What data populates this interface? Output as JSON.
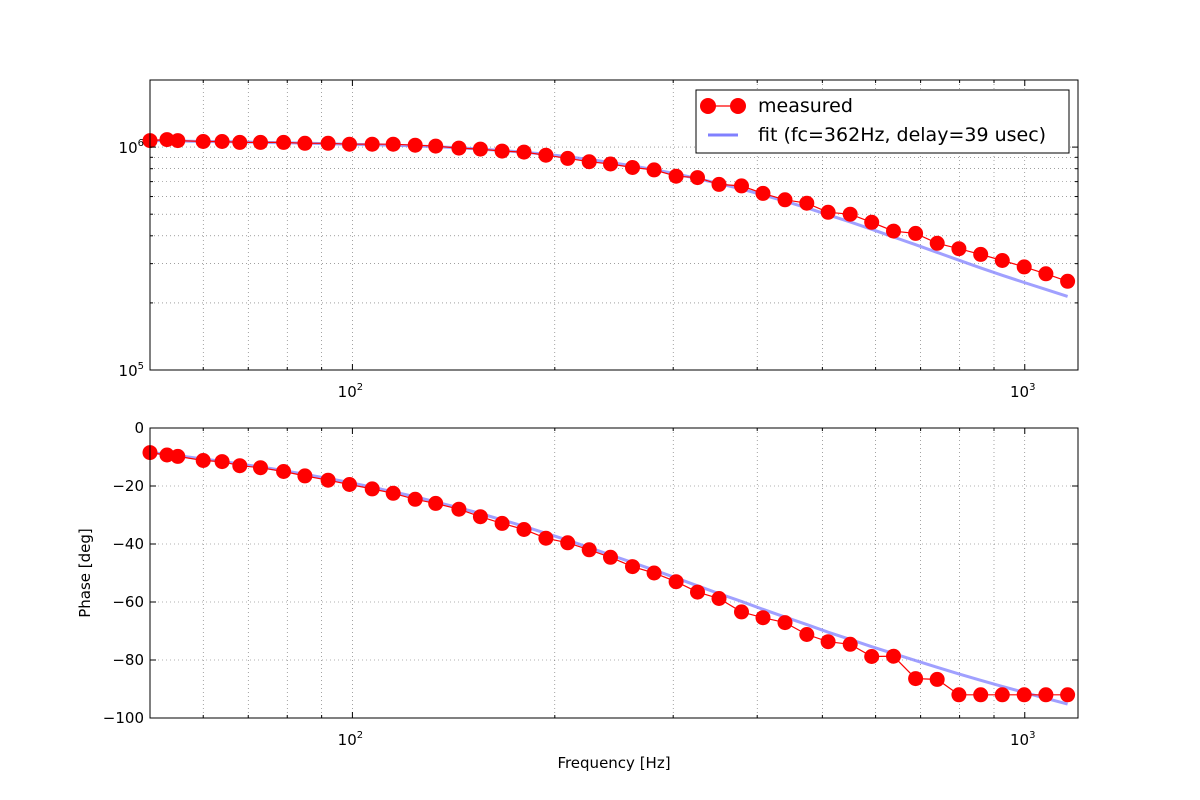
{
  "chart_data": [
    {
      "type": "line",
      "panel": "magnitude",
      "xscale": "log",
      "yscale": "log",
      "xlim": [
        50,
        1200
      ],
      "ylim": [
        100000,
        2000000
      ],
      "grid": true,
      "xlabel": "",
      "ylabel": "",
      "x_ticks": [
        {
          "value": 100,
          "base": "10",
          "exp": "2"
        },
        {
          "value": 1000,
          "base": "10",
          "exp": "3"
        }
      ],
      "y_ticks": [
        {
          "value": 100000,
          "base": "10",
          "exp": "5"
        },
        {
          "value": 1000000,
          "base": "10",
          "exp": "6"
        }
      ],
      "legend": {
        "placement": "upper right",
        "entries": [
          {
            "label": "measured",
            "color": "#ff0000",
            "marker": "circle"
          },
          {
            "label": "fit (fc=362Hz, delay=39 usec)",
            "color": "#8080ff",
            "marker": "line"
          }
        ]
      },
      "series": [
        {
          "name": "measured",
          "color": "#ff0000",
          "x": [
            50,
            53,
            55,
            60,
            64,
            68,
            73,
            79,
            85,
            92,
            99,
            107,
            115,
            124,
            133,
            144,
            155,
            167,
            180,
            194,
            209,
            225,
            242,
            261,
            281,
            303,
            326,
            351,
            379,
            408,
            440,
            474,
            510,
            550,
            592,
            638,
            688,
            741,
            798,
            860,
            926,
            998,
            1075,
            1158
          ],
          "y": [
            1070000,
            1080000,
            1070000,
            1060000,
            1060000,
            1050000,
            1050000,
            1050000,
            1040000,
            1040000,
            1030000,
            1030000,
            1030000,
            1020000,
            1010000,
            990000,
            980000,
            960000,
            950000,
            920000,
            890000,
            860000,
            840000,
            810000,
            790000,
            740000,
            730000,
            680000,
            670000,
            620000,
            580000,
            560000,
            510000,
            500000,
            460000,
            420000,
            410000,
            370000,
            350000,
            330000,
            310000,
            290000,
            270000,
            250000
          ]
        },
        {
          "name": "fit (fc=362Hz, delay=39 usec)",
          "color": "#8080ff",
          "x": [
            50,
            53,
            55,
            60,
            64,
            68,
            73,
            79,
            85,
            92,
            99,
            107,
            115,
            124,
            133,
            144,
            155,
            167,
            180,
            194,
            209,
            225,
            242,
            261,
            281,
            303,
            326,
            351,
            379,
            408,
            440,
            474,
            510,
            550,
            592,
            638,
            688,
            741,
            798,
            860,
            926,
            998,
            1075,
            1158
          ],
          "y": [
            1070000,
            1070000,
            1065000,
            1060000,
            1058000,
            1055000,
            1050000,
            1046000,
            1042000,
            1036000,
            1030000,
            1025000,
            1020000,
            1012000,
            1004000,
            993000,
            980000,
            965000,
            948000,
            928000,
            906000,
            880000,
            853000,
            824000,
            792000,
            758000,
            722000,
            686000,
            648000,
            610000,
            572000,
            534000,
            497000,
            462000,
            428000,
            395000,
            365000,
            337000,
            311000,
            287000,
            266000,
            247000,
            230000,
            214000
          ]
        }
      ]
    },
    {
      "type": "line",
      "panel": "phase",
      "xscale": "log",
      "yscale": "linear",
      "xlim": [
        50,
        1200
      ],
      "ylim": [
        -100,
        0
      ],
      "grid": true,
      "xlabel": "Frequency [Hz]",
      "ylabel": "Phase [deg]",
      "x_ticks": [
        {
          "value": 100,
          "base": "10",
          "exp": "2"
        },
        {
          "value": 1000,
          "base": "10",
          "exp": "3"
        }
      ],
      "y_ticks": [
        {
          "value": 0,
          "label": "0"
        },
        {
          "value": -20,
          "label": "−20"
        },
        {
          "value": -40,
          "label": "−40"
        },
        {
          "value": -60,
          "label": "−60"
        },
        {
          "value": -80,
          "label": "−80"
        },
        {
          "value": -100,
          "label": "−100"
        }
      ],
      "series": [
        {
          "name": "measured",
          "color": "#ff0000",
          "x": [
            50,
            53,
            55,
            60,
            64,
            68,
            73,
            79,
            85,
            92,
            99,
            107,
            115,
            124,
            133,
            144,
            155,
            167,
            180,
            194,
            209,
            225,
            242,
            261,
            281,
            303,
            326,
            351,
            379,
            408,
            440,
            474,
            510,
            550,
            592,
            638,
            688,
            741,
            798,
            860,
            926,
            998,
            1075,
            1158
          ],
          "y": [
            -8.5,
            -9.3,
            -9.8,
            -11.2,
            -11.6,
            -13,
            -13.7,
            -15,
            -16.5,
            -18,
            -19.5,
            -21,
            -22.5,
            -24.6,
            -26,
            -28,
            -30.6,
            -32.9,
            -35,
            -38,
            -39.6,
            -42,
            -44.6,
            -47.8,
            -50,
            -53,
            -56.6,
            -58.8,
            -63.4,
            -65.4,
            -67.1,
            -71.2,
            -73.7,
            -74.6,
            -78.8,
            -78.7,
            -86.4,
            -86.7,
            -92,
            -92,
            -92,
            -92,
            -92,
            -92
          ]
        },
        {
          "name": "fit (fc=362Hz, delay=39 usec)",
          "color": "#8080ff",
          "x": [
            50,
            53,
            55,
            60,
            64,
            68,
            73,
            79,
            85,
            92,
            99,
            107,
            115,
            124,
            133,
            144,
            155,
            167,
            180,
            194,
            209,
            225,
            242,
            261,
            281,
            303,
            326,
            351,
            379,
            408,
            440,
            474,
            510,
            550,
            592,
            638,
            688,
            741,
            798,
            860,
            926,
            998,
            1075,
            1158
          ],
          "y": [
            -8.5,
            -9,
            -9.5,
            -10.7,
            -11.5,
            -12.4,
            -13.4,
            -14.7,
            -16,
            -17.4,
            -18.8,
            -20.4,
            -22,
            -23.7,
            -25.5,
            -27.5,
            -29.5,
            -31.7,
            -33.9,
            -36.3,
            -38.7,
            -41.2,
            -43.8,
            -46.4,
            -49,
            -51.7,
            -54.4,
            -57.1,
            -59.8,
            -62.5,
            -65.2,
            -67.8,
            -70.4,
            -72.9,
            -75.4,
            -77.8,
            -80.2,
            -82.5,
            -84.8,
            -87,
            -89.1,
            -91.2,
            -93.2,
            -95.2
          ]
        }
      ]
    }
  ]
}
